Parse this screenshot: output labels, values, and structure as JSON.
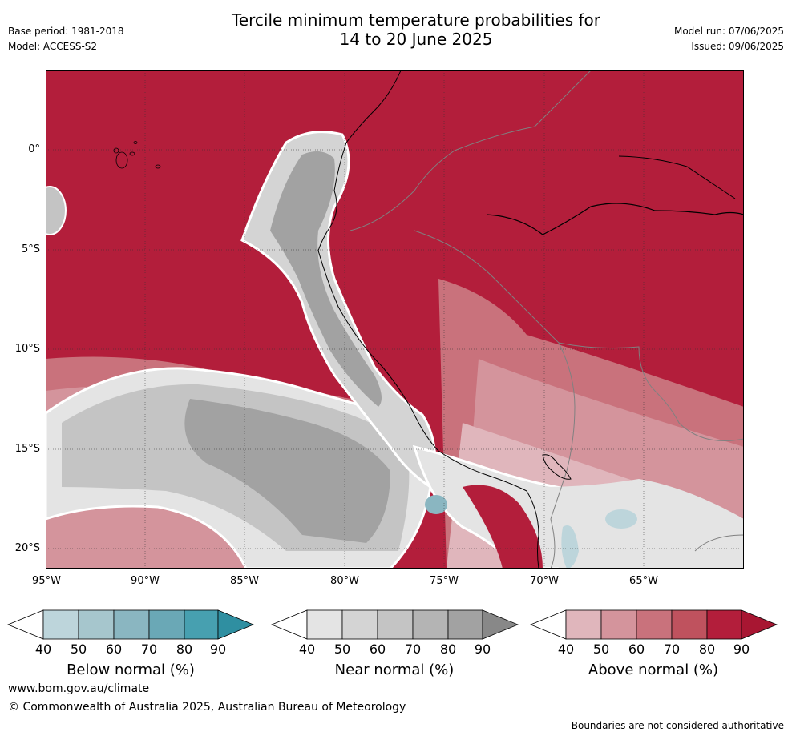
{
  "header": {
    "title_line1": "Tercile minimum temperature probabilities for",
    "title_line2": "14 to 20 June 2025",
    "base_period": "Base period: 1981-2018",
    "model": "Model: ACCESS-S2",
    "model_run": "Model run: 07/06/2025",
    "issued": "Issued: 09/06/2025"
  },
  "map": {
    "lon_labels": [
      "95°W",
      "90°W",
      "85°W",
      "80°W",
      "75°W",
      "70°W",
      "65°W"
    ],
    "lat_labels": [
      "0°",
      "5°S",
      "10°S",
      "15°S",
      "20°S"
    ],
    "colors": {
      "above": [
        "#ffffff",
        "#e0b6bc",
        "#d4949c",
        "#c9727c",
        "#bf525e",
        "#b31e3b",
        "#a81632"
      ],
      "near": [
        "#ffffff",
        "#e4e4e4",
        "#d4d4d4",
        "#c4c4c4",
        "#b4b4b4",
        "#a2a2a2",
        "#888888"
      ],
      "below": [
        "#ffffff",
        "#bdd5db",
        "#a6c6cd",
        "#8ab6c1",
        "#6aa8b6",
        "#47a0b0",
        "#2f8fa1"
      ]
    }
  },
  "colorbars": [
    {
      "label": "Below normal (%)",
      "ticks": [
        "40",
        "50",
        "60",
        "70",
        "80",
        "90"
      ]
    },
    {
      "label": "Near normal (%)",
      "ticks": [
        "40",
        "50",
        "60",
        "70",
        "80",
        "90"
      ]
    },
    {
      "label": "Above normal (%)",
      "ticks": [
        "40",
        "50",
        "60",
        "70",
        "80",
        "90"
      ]
    }
  ],
  "footer": {
    "website": "www.bom.gov.au/climate",
    "copyright": "© Commonwealth of Australia 2025, Australian Bureau of Meteorology",
    "disclaimer": "Boundaries are not considered authoritative"
  }
}
